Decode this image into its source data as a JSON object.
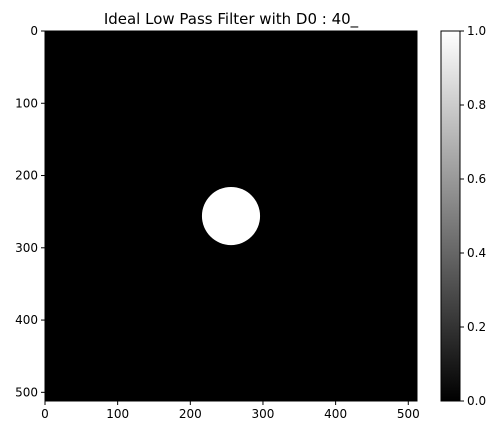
{
  "chart_data": {
    "type": "heatmap",
    "title": "Ideal Low Pass Filter with D0 : 40_",
    "xlabel": "",
    "ylabel": "",
    "image_size": [
      512,
      512
    ],
    "xlim": [
      0,
      512
    ],
    "ylim": [
      512,
      0
    ],
    "x_ticks": [
      0,
      100,
      200,
      300,
      400,
      500
    ],
    "y_ticks": [
      0,
      100,
      200,
      300,
      400,
      500
    ],
    "filter": {
      "center": [
        256,
        256
      ],
      "radius": 40,
      "inside_value": 1.0,
      "outside_value": 0.0
    },
    "colorbar": {
      "cmap": "gray",
      "range": [
        0.0,
        1.0
      ],
      "ticks": [
        "0.0",
        "0.2",
        "0.4",
        "0.6",
        "0.8",
        "1.0"
      ]
    }
  }
}
